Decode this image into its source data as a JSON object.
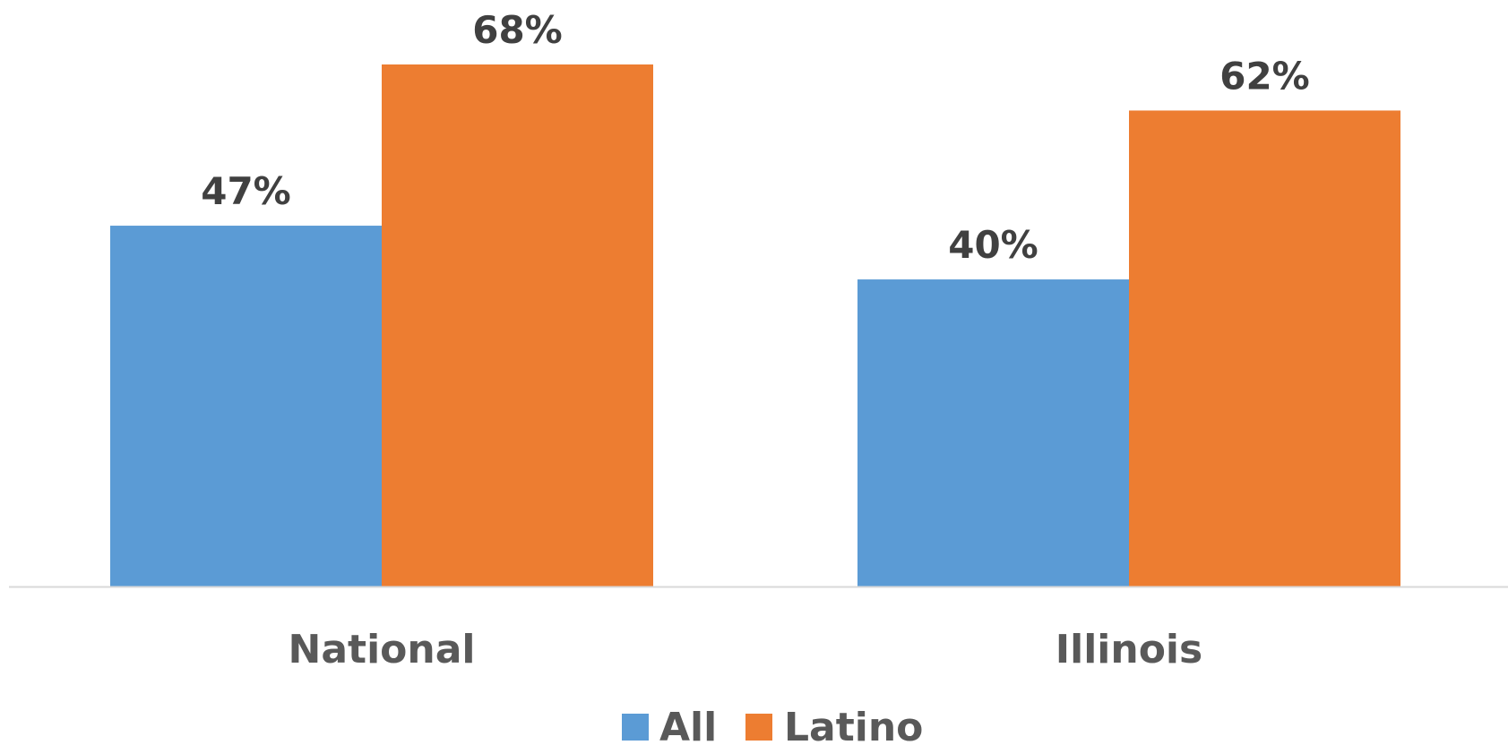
{
  "chart_data": {
    "type": "bar",
    "categories": [
      "National",
      "Illinois"
    ],
    "series": [
      {
        "name": "All",
        "values": [
          47,
          40
        ],
        "labels": [
          "47%",
          "40%"
        ],
        "color": "#5B9BD5"
      },
      {
        "name": "Latino",
        "values": [
          68,
          62
        ],
        "labels": [
          "68%",
          "62%"
        ],
        "color": "#ED7D31"
      }
    ],
    "unit": "%",
    "title": "",
    "xlabel": "",
    "ylabel": "",
    "ylim": [
      0,
      68
    ],
    "grid": false,
    "legend": "bottom",
    "axis_color": "#D9D9D9"
  }
}
